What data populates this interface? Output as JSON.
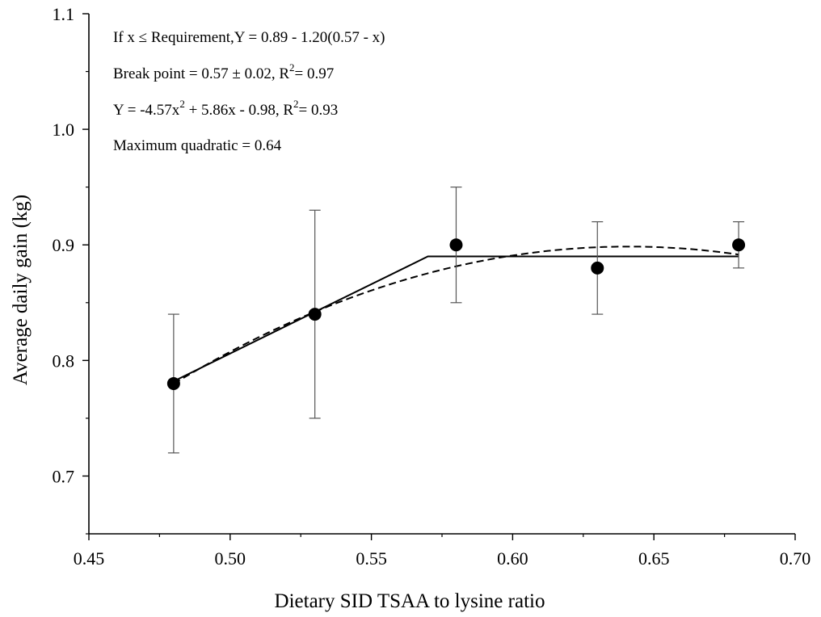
{
  "chart_data": {
    "type": "scatter",
    "title": "",
    "xlabel": "Dietary SID TSAA to lysine ratio",
    "ylabel": "Average daily gain (kg)",
    "xlim": [
      0.45,
      0.7
    ],
    "ylim": [
      0.65,
      1.1
    ],
    "xticks": [
      0.45,
      0.5,
      0.55,
      0.6,
      0.65,
      0.7
    ],
    "xtick_labels": [
      "0.45",
      "0.50",
      "0.55",
      "0.60",
      "0.65",
      "0.70"
    ],
    "yticks": [
      0.7,
      0.8,
      0.9,
      1.0,
      1.1
    ],
    "ytick_labels": [
      "0.7",
      "0.8",
      "0.9",
      "1.0",
      "1.1"
    ],
    "grid": false,
    "points": {
      "x": [
        0.48,
        0.53,
        0.58,
        0.63,
        0.68
      ],
      "y": [
        0.78,
        0.84,
        0.9,
        0.88,
        0.9
      ],
      "err_low": [
        0.72,
        0.75,
        0.85,
        0.84,
        0.88
      ],
      "err_high": [
        0.84,
        0.93,
        0.95,
        0.92,
        0.92
      ]
    },
    "broken_line": {
      "style": "solid",
      "intercept": 0.89,
      "slope": 1.2,
      "breakpoint": 0.57,
      "x_range": [
        0.48,
        0.68
      ]
    },
    "quadratic": {
      "style": "dashed",
      "a": -4.57,
      "b": 5.86,
      "c": -0.98,
      "x_range": [
        0.48,
        0.68
      ]
    },
    "annotations": [
      {
        "parts": [
          {
            "text": "If x ≤ Requirement,Y = 0.89 - 1.20(0.57 - x)"
          }
        ]
      },
      {
        "parts": [
          {
            "text": "Break point = 0.57 ± 0.02, R"
          },
          {
            "text": "2",
            "sup": true
          },
          {
            "text": "= 0.97"
          }
        ]
      },
      {
        "parts": [
          {
            "text": "Y = -4.57x"
          },
          {
            "text": "2",
            "sup": true
          },
          {
            "text": " + 5.86x - 0.98, R"
          },
          {
            "text": "2",
            "sup": true
          },
          {
            "text": "= 0.93"
          }
        ]
      },
      {
        "parts": [
          {
            "text": "Maximum quadratic = 0.64"
          }
        ]
      }
    ],
    "colors": {
      "axis": "#000000",
      "marker": "#000000",
      "errorbar": "#555555"
    }
  }
}
